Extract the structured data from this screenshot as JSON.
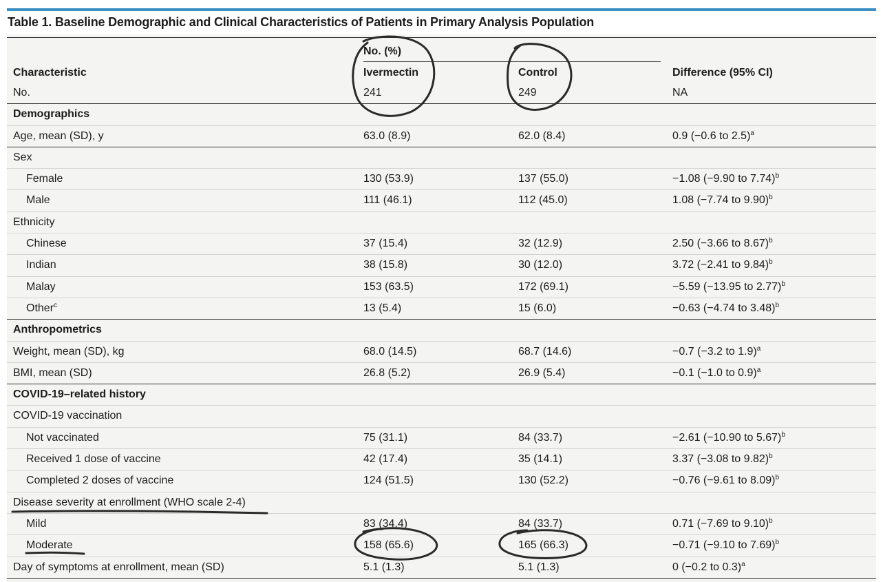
{
  "title": "Table 1. Baseline Demographic and Clinical Characteristics of Patients in Primary Analysis Population",
  "header": {
    "group_label": "No. (%)",
    "col_characteristic": "Characteristic",
    "col_ivermectin": "Ivermectin",
    "col_control": "Control",
    "col_difference": "Difference (95% CI)"
  },
  "rows": [
    {
      "label": "No.",
      "iver": "241",
      "ctrl": "249",
      "diff": "NA",
      "sup": ""
    },
    {
      "label": "Demographics",
      "iver": "",
      "ctrl": "",
      "diff": "",
      "sup": ""
    },
    {
      "label": "Age, mean (SD), y",
      "iver": "63.0 (8.9)",
      "ctrl": "62.0 (8.4)",
      "diff": "0.9 (−0.6 to 2.5)",
      "sup": "a"
    },
    {
      "label": "Sex",
      "iver": "",
      "ctrl": "",
      "diff": "",
      "sup": ""
    },
    {
      "label": "Female",
      "iver": "130 (53.9)",
      "ctrl": "137 (55.0)",
      "diff": "−1.08 (−9.90 to 7.74)",
      "sup": "b"
    },
    {
      "label": "Male",
      "iver": "111 (46.1)",
      "ctrl": "112 (45.0)",
      "diff": "1.08 (−7.74 to 9.90)",
      "sup": "b"
    },
    {
      "label": "Ethnicity",
      "iver": "",
      "ctrl": "",
      "diff": "",
      "sup": ""
    },
    {
      "label": "Chinese",
      "iver": "37 (15.4)",
      "ctrl": "32 (12.9)",
      "diff": "2.50 (−3.66 to 8.67)",
      "sup": "b"
    },
    {
      "label": "Indian",
      "iver": "38 (15.8)",
      "ctrl": "30 (12.0)",
      "diff": "3.72 (−2.41 to 9.84)",
      "sup": "b"
    },
    {
      "label": "Malay",
      "iver": "153 (63.5)",
      "ctrl": "172 (69.1)",
      "diff": "−5.59 (−13.95 to 2.77)",
      "sup": "b"
    },
    {
      "label": "Other",
      "label_sup": "c",
      "iver": "13 (5.4)",
      "ctrl": "15 (6.0)",
      "diff": "−0.63 (−4.74 to 3.48)",
      "sup": "b"
    },
    {
      "label": "Anthropometrics",
      "iver": "",
      "ctrl": "",
      "diff": "",
      "sup": ""
    },
    {
      "label": "Weight, mean (SD), kg",
      "iver": "68.0 (14.5)",
      "ctrl": "68.7 (14.6)",
      "diff": "−0.7 (−3.2 to 1.9)",
      "sup": "a"
    },
    {
      "label": "BMI, mean (SD)",
      "iver": "26.8 (5.2)",
      "ctrl": "26.9 (5.4)",
      "diff": "−0.1 (−1.0 to 0.9)",
      "sup": "a"
    },
    {
      "label": "COVID-19–related history",
      "iver": "",
      "ctrl": "",
      "diff": "",
      "sup": ""
    },
    {
      "label": "COVID-19 vaccination",
      "iver": "",
      "ctrl": "",
      "diff": "",
      "sup": ""
    },
    {
      "label": "Not vaccinated",
      "iver": "75 (31.1)",
      "ctrl": "84 (33.7)",
      "diff": "−2.61 (−10.90 to 5.67)",
      "sup": "b"
    },
    {
      "label": "Received 1 dose of vaccine",
      "iver": "42 (17.4)",
      "ctrl": "35 (14.1)",
      "diff": "3.37 (−3.08 to 9.82)",
      "sup": "b"
    },
    {
      "label": "Completed 2 doses of vaccine",
      "iver": "124 (51.5)",
      "ctrl": "130 (52.2)",
      "diff": "−0.76 (−9.61 to 8.09)",
      "sup": "b"
    },
    {
      "label": "Disease severity at enrollment (WHO scale 2-4)",
      "iver": "",
      "ctrl": "",
      "diff": "",
      "sup": ""
    },
    {
      "label": "Mild",
      "iver": "83 (34.4)",
      "ctrl": "84 (33.7)",
      "diff": "0.71 (−7.69 to 9.10)",
      "sup": "b"
    },
    {
      "label": "Moderate",
      "iver": "158 (65.6)",
      "ctrl": "165 (66.3)",
      "diff": "−0.71 (−9.10 to 7.69)",
      "sup": "b"
    },
    {
      "label": "Day of symptoms at enrollment, mean (SD)",
      "iver": "5.1 (1.3)",
      "ctrl": "5.1 (1.3)",
      "diff": "0 (−0.2 to 0.3)",
      "sup": "a"
    }
  ],
  "colors": {
    "accent_rule": "#3c8fc4",
    "table_background": "#f4f4f3",
    "annotation_ink": "#2a2a2a"
  }
}
